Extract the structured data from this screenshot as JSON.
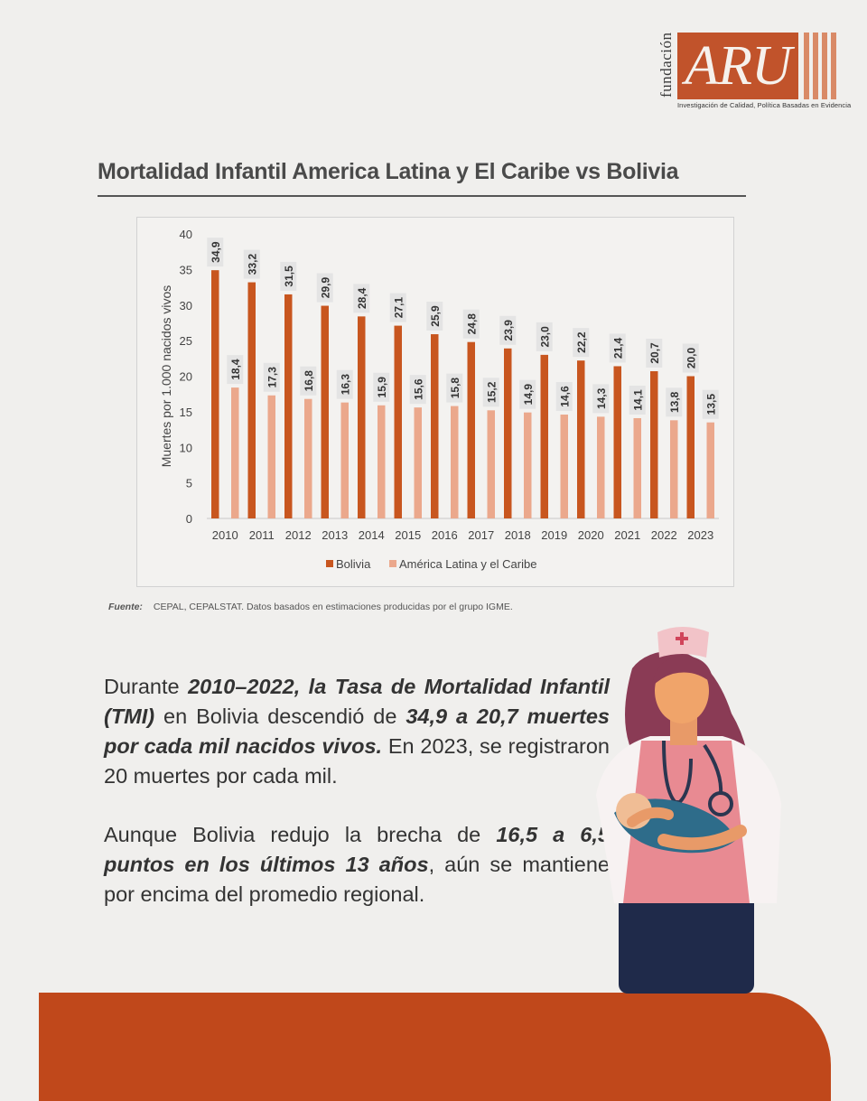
{
  "logo": {
    "side_text": "fundación",
    "brand": "ARU",
    "tagline": "Investigación de Calidad, Política  Basadas en Evidencia"
  },
  "title": "Mortalidad Infantil America Latina y El Caribe vs Bolivia",
  "chart_data": {
    "type": "bar",
    "categories": [
      "2010",
      "2011",
      "2012",
      "2013",
      "2014",
      "2015",
      "2016",
      "2017",
      "2018",
      "2019",
      "2020",
      "2021",
      "2022",
      "2023"
    ],
    "series": [
      {
        "name": "Bolivia",
        "color": "#c8561f",
        "values": [
          34.9,
          33.2,
          31.5,
          29.9,
          28.4,
          27.1,
          25.9,
          24.8,
          23.9,
          23.0,
          22.2,
          21.4,
          20.7,
          20.0
        ],
        "labels": [
          "34,9",
          "33,2",
          "31,5",
          "29,9",
          "28,4",
          "27,1",
          "25,9",
          "24,8",
          "23,9",
          "23,0",
          "22,2",
          "21,4",
          "20,7",
          "20,0"
        ]
      },
      {
        "name": "América Latina y el Caribe",
        "color": "#eba88c",
        "values": [
          18.4,
          17.3,
          16.8,
          16.3,
          15.9,
          15.6,
          15.8,
          15.2,
          14.9,
          14.6,
          14.3,
          14.1,
          13.8,
          13.5
        ],
        "labels": [
          "18,4",
          "17,3",
          "16,8",
          "16,3",
          "15,9",
          "15,6",
          "15,8",
          "15,2",
          "14,9",
          "14,6",
          "14,3",
          "14,1",
          "13,8",
          "13,5"
        ]
      }
    ],
    "ylabel": "Muertes por 1.000 nacidos vivos",
    "yticks": [
      0,
      5,
      10,
      15,
      20,
      25,
      30,
      35,
      40
    ],
    "ylim": [
      0,
      40
    ],
    "grid": false,
    "legend": "bottom"
  },
  "source": {
    "label": "Fuente:",
    "text": "CEPAL, CEPALSTAT. Datos basados en estimaciones producidas por el grupo IGME."
  },
  "paragraph1": {
    "a": "Durante ",
    "b": "2010–2022, la Tasa de Mortalidad Infantil (TMI)",
    "c": " en Bolivia descendió de ",
    "d": "34,9 a 20,7 muertes por cada mil nacidos vivos.",
    "e": " En 2023, se registraron 20 muertes por cada mil."
  },
  "paragraph2": {
    "a": "Aunque Bolivia redujo la brecha de ",
    "b": "16,5 a 6,5 puntos en los últimos 13 años",
    "c": ", aún se mantiene por encima del promedio regional."
  },
  "colors": {
    "accent": "#c0481b",
    "bolivia": "#c8561f",
    "region": "#eba88c"
  }
}
